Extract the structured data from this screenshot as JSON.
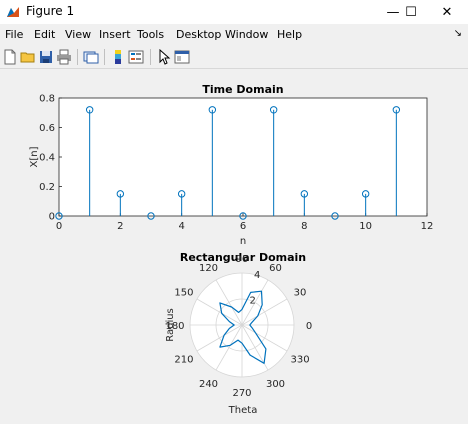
{
  "window": {
    "title": "Figure 1",
    "minimize": "—",
    "maximize": "☐",
    "close": "✕"
  },
  "menu": [
    "File",
    "Edit",
    "View",
    "Insert",
    "Tools",
    "Desktop",
    "Window",
    "Help"
  ],
  "menu_overflow": "↘",
  "toolbar": {
    "icons": [
      "new-figure-icon",
      "open-file-icon",
      "save-icon",
      "print-icon",
      "link-plot-icon",
      "colorbar-icon",
      "legend-icon",
      "pointer-icon",
      "property-editor-icon"
    ]
  },
  "colors": {
    "series": "#0072bd",
    "axes": "#262626",
    "grid": "#d6d6d6"
  },
  "chart_data": [
    {
      "type": "stem",
      "title": "Time Domain",
      "xlabel": "n",
      "ylabel": "X[n]",
      "xlim": [
        0,
        12
      ],
      "ylim": [
        0,
        0.8
      ],
      "xticks": [
        0,
        2,
        4,
        6,
        8,
        10,
        12
      ],
      "yticks": [
        0,
        0.2,
        0.4,
        0.6,
        0.8
      ],
      "x": [
        0,
        1,
        2,
        3,
        4,
        5,
        6,
        7,
        8,
        9,
        10,
        11
      ],
      "y": [
        0,
        0.72,
        0.15,
        0,
        0.15,
        0.72,
        0,
        0.72,
        0.15,
        0,
        0.15,
        0.72
      ]
    },
    {
      "type": "polar",
      "title": "Rectangular Domain",
      "xlabel": "Theta",
      "ylabel": "Radius",
      "rlim": [
        0,
        4
      ],
      "rticks": [
        2,
        4
      ],
      "theta_ticks": [
        0,
        30,
        60,
        90,
        120,
        150,
        180,
        210,
        240,
        270,
        300,
        330
      ],
      "series": [
        {
          "theta_deg": [
            0,
            15,
            30,
            45,
            60,
            75,
            90,
            105,
            120,
            135,
            150,
            165,
            180,
            195,
            210,
            225,
            240,
            255,
            270,
            285,
            300,
            315,
            330,
            345,
            360
          ],
          "r": [
            0.6,
            0.8,
            1.4,
            2.2,
            3.0,
            2.6,
            1.2,
            1.0,
            1.6,
            2.4,
            1.8,
            1.0,
            0.6,
            1.0,
            1.6,
            2.4,
            1.8,
            1.2,
            1.4,
            2.4,
            3.4,
            2.6,
            1.2,
            0.8,
            0.6
          ]
        }
      ]
    }
  ]
}
